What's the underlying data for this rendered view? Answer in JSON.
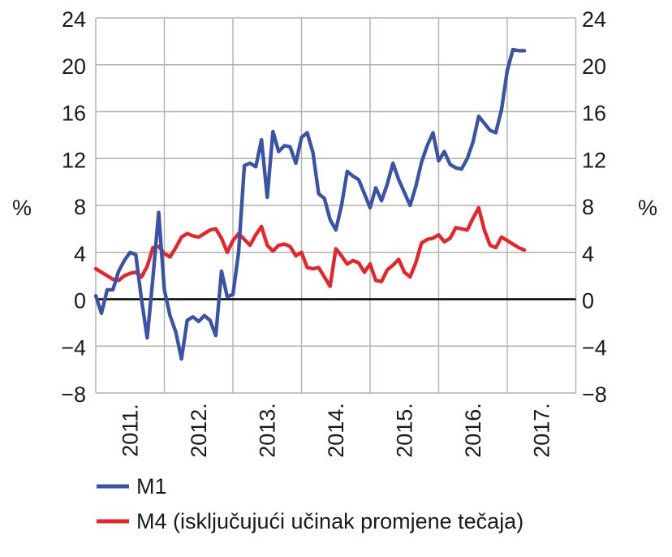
{
  "chart_data": {
    "type": "line",
    "title": "",
    "ylabel": "%",
    "ylabel_right": "%",
    "ylim": [
      -8,
      24
    ],
    "ytick_step": 4,
    "y_tick_labels": [
      "24",
      "20",
      "16",
      "12",
      "8",
      "4",
      "0",
      "−4",
      "−8"
    ],
    "x_tick_labels": [
      "2011.",
      "2012.",
      "2013.",
      "2014.",
      "2015.",
      "2016.",
      "2017."
    ],
    "xlim_years": [
      2011,
      2018
    ],
    "x_frequency": "monthly",
    "x_start": "2011-01",
    "x_end": "2017-04",
    "grid": true,
    "grid_color": "#b1b1b1",
    "zero_line_color": "#000000",
    "legend_position": "bottom-left",
    "series": [
      {
        "name": "M1",
        "color": "#3A53A5",
        "values": [
          0.3,
          -1.2,
          0.8,
          0.8,
          2.4,
          3.3,
          4.0,
          3.8,
          0.0,
          -3.3,
          1.8,
          7.4,
          0.8,
          -1.4,
          -2.8,
          -5.1,
          -1.8,
          -1.5,
          -1.9,
          -1.4,
          -1.8,
          -3.1,
          2.4,
          0.2,
          0.4,
          4.0,
          11.4,
          11.6,
          11.3,
          13.6,
          8.7,
          14.3,
          12.6,
          13.1,
          13.0,
          11.6,
          13.8,
          14.2,
          12.5,
          9.0,
          8.6,
          6.8,
          5.9,
          8.0,
          10.9,
          10.5,
          10.2,
          9.0,
          7.8,
          9.5,
          8.4,
          9.8,
          11.6,
          10.2,
          9.1,
          8.0,
          9.6,
          11.7,
          13.1,
          14.2,
          11.8,
          12.6,
          11.5,
          11.2,
          11.1,
          12.0,
          13.4,
          15.6,
          15.0,
          14.4,
          14.2,
          16.2,
          19.5,
          21.3,
          21.2,
          21.2
        ]
      },
      {
        "name": "M4 (isključujući učinak promjene tečaja)",
        "color": "#E5252B",
        "values": [
          2.6,
          2.3,
          2.0,
          1.7,
          1.6,
          2.0,
          2.2,
          2.3,
          1.9,
          2.8,
          4.4,
          4.5,
          3.9,
          3.6,
          4.4,
          5.3,
          5.6,
          5.4,
          5.3,
          5.6,
          5.9,
          6.0,
          5.2,
          4.0,
          5.0,
          5.6,
          5.1,
          4.6,
          5.5,
          6.2,
          4.6,
          4.1,
          4.6,
          4.7,
          4.5,
          3.7,
          4.0,
          2.7,
          2.6,
          2.7,
          1.9,
          1.1,
          4.3,
          3.7,
          3.0,
          3.3,
          3.1,
          2.3,
          3.0,
          1.6,
          1.5,
          2.5,
          2.9,
          3.4,
          2.3,
          1.9,
          3.1,
          4.8,
          5.1,
          5.2,
          5.5,
          4.9,
          5.2,
          6.1,
          6.0,
          5.9,
          6.9,
          7.8,
          5.9,
          4.6,
          4.4,
          5.3,
          5.0,
          4.7,
          4.4,
          4.2
        ]
      }
    ]
  }
}
